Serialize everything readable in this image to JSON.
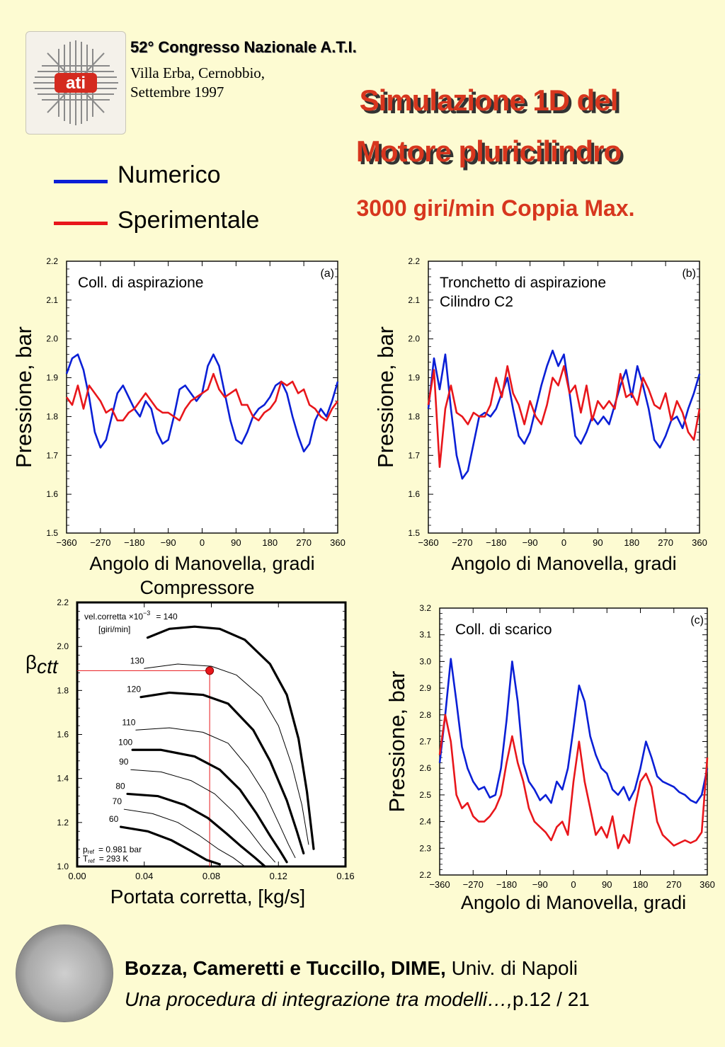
{
  "header": {
    "congress": "52° Congresso Nazionale A.T.I.",
    "venue_line1": "Villa Erba, Cernobbio,",
    "venue_line2": "Settembre 1997",
    "logo_text": "ati"
  },
  "title": {
    "line1": "Simulazione 1D del",
    "line2": "Motore pluricilindro",
    "subtitle": "3000 giri/min Coppia Max."
  },
  "legend": [
    {
      "label": "Numerico",
      "color": "#0a1fd6"
    },
    {
      "label": "Sperimentale",
      "color": "#e8161b"
    }
  ],
  "footer": {
    "authors_bold": "Bozza, Cameretti e Tuccillo, DIME,",
    "affiliation": " Univ. di Napoli",
    "paper_italic": "Una procedura di integrazione tra modelli…,",
    "page": "p.12 / 21"
  },
  "chart_data": [
    {
      "id": "a",
      "type": "line",
      "tag": "(a)",
      "annotation": "Coll. di aspirazione",
      "xlabel": "Angolo di Manovella, gradi",
      "ylabel": "Pressione, bar",
      "xlim": [
        -360,
        360
      ],
      "ylim": [
        1.5,
        2.2
      ],
      "xticks": [
        -360,
        -270,
        -180,
        -90,
        0,
        90,
        180,
        270,
        360
      ],
      "xtick_labels": [
        "−360",
        "−270",
        "−180",
        "−90",
        "0",
        "90",
        "180",
        "270",
        "360"
      ],
      "yticks": [
        1.5,
        1.6,
        1.7,
        1.8,
        1.9,
        2.0,
        2.1,
        2.2
      ],
      "ytick_labels": [
        "1.5",
        "1.6",
        "1.7",
        "1.8",
        "1.9",
        "2.0",
        "2.1",
        "2.2"
      ],
      "series": [
        {
          "name": "Numerico",
          "color": "#0a1fd6",
          "x": [
            -360,
            -345,
            -330,
            -315,
            -300,
            -285,
            -270,
            -255,
            -240,
            -225,
            -210,
            -195,
            -180,
            -165,
            -150,
            -135,
            -120,
            -105,
            -90,
            -75,
            -60,
            -45,
            -30,
            -15,
            0,
            15,
            30,
            45,
            60,
            75,
            90,
            105,
            120,
            135,
            150,
            165,
            180,
            195,
            210,
            225,
            240,
            255,
            270,
            285,
            300,
            315,
            330,
            345,
            360
          ],
          "y": [
            1.91,
            1.95,
            1.96,
            1.92,
            1.85,
            1.76,
            1.72,
            1.74,
            1.8,
            1.86,
            1.88,
            1.85,
            1.82,
            1.8,
            1.84,
            1.82,
            1.76,
            1.73,
            1.74,
            1.8,
            1.87,
            1.88,
            1.86,
            1.84,
            1.86,
            1.93,
            1.96,
            1.93,
            1.86,
            1.79,
            1.74,
            1.73,
            1.76,
            1.8,
            1.82,
            1.83,
            1.85,
            1.88,
            1.89,
            1.86,
            1.8,
            1.75,
            1.71,
            1.73,
            1.79,
            1.82,
            1.8,
            1.84,
            1.89
          ]
        },
        {
          "name": "Sperimentale",
          "color": "#e8161b",
          "x": [
            -360,
            -345,
            -330,
            -315,
            -300,
            -285,
            -270,
            -255,
            -240,
            -225,
            -210,
            -195,
            -180,
            -165,
            -150,
            -135,
            -120,
            -105,
            -90,
            -75,
            -60,
            -45,
            -30,
            -15,
            0,
            15,
            30,
            45,
            60,
            75,
            90,
            105,
            120,
            135,
            150,
            165,
            180,
            195,
            210,
            225,
            240,
            255,
            270,
            285,
            300,
            315,
            330,
            345,
            360
          ],
          "y": [
            1.85,
            1.83,
            1.88,
            1.82,
            1.88,
            1.86,
            1.84,
            1.81,
            1.82,
            1.79,
            1.79,
            1.81,
            1.82,
            1.84,
            1.86,
            1.84,
            1.82,
            1.81,
            1.81,
            1.8,
            1.79,
            1.82,
            1.84,
            1.85,
            1.86,
            1.87,
            1.91,
            1.87,
            1.85,
            1.86,
            1.87,
            1.83,
            1.83,
            1.8,
            1.79,
            1.81,
            1.82,
            1.84,
            1.89,
            1.88,
            1.89,
            1.86,
            1.87,
            1.83,
            1.82,
            1.8,
            1.79,
            1.82,
            1.84
          ]
        }
      ]
    },
    {
      "id": "b",
      "type": "line",
      "tag": "(b)",
      "annotation_line1": "Tronchetto di aspirazione",
      "annotation_line2": "Cilindro C2",
      "xlabel": "Angolo di Manovella, gradi",
      "ylabel": "Pressione, bar",
      "xlim": [
        -360,
        360
      ],
      "ylim": [
        1.5,
        2.2
      ],
      "xticks": [
        -360,
        -270,
        -180,
        -90,
        0,
        90,
        180,
        270,
        360
      ],
      "xtick_labels": [
        "−360",
        "−270",
        "−180",
        "−90",
        "0",
        "90",
        "180",
        "270",
        "360"
      ],
      "yticks": [
        1.5,
        1.6,
        1.7,
        1.8,
        1.9,
        2.0,
        2.1,
        2.2
      ],
      "ytick_labels": [
        "1.5",
        "1.6",
        "1.7",
        "1.8",
        "1.9",
        "2.0",
        "2.1",
        "2.2"
      ],
      "series": [
        {
          "name": "Numerico",
          "color": "#0a1fd6",
          "x": [
            -360,
            -345,
            -330,
            -315,
            -300,
            -285,
            -270,
            -255,
            -240,
            -225,
            -210,
            -195,
            -180,
            -165,
            -150,
            -135,
            -120,
            -105,
            -90,
            -75,
            -60,
            -45,
            -30,
            -15,
            0,
            15,
            30,
            45,
            60,
            75,
            90,
            105,
            120,
            135,
            150,
            165,
            180,
            195,
            210,
            225,
            240,
            255,
            270,
            285,
            300,
            315,
            330,
            345,
            360
          ],
          "y": [
            1.82,
            1.95,
            1.87,
            1.96,
            1.82,
            1.7,
            1.64,
            1.66,
            1.73,
            1.8,
            1.81,
            1.8,
            1.82,
            1.86,
            1.9,
            1.82,
            1.75,
            1.73,
            1.76,
            1.82,
            1.88,
            1.93,
            1.97,
            1.93,
            1.96,
            1.86,
            1.75,
            1.73,
            1.76,
            1.8,
            1.78,
            1.8,
            1.78,
            1.83,
            1.88,
            1.92,
            1.85,
            1.93,
            1.88,
            1.82,
            1.74,
            1.72,
            1.75,
            1.79,
            1.8,
            1.77,
            1.82,
            1.86,
            1.91
          ]
        },
        {
          "name": "Sperimentale",
          "color": "#e8161b",
          "x": [
            -360,
            -345,
            -330,
            -315,
            -300,
            -285,
            -270,
            -255,
            -240,
            -225,
            -210,
            -195,
            -180,
            -165,
            -150,
            -135,
            -120,
            -105,
            -90,
            -75,
            -60,
            -45,
            -30,
            -15,
            0,
            15,
            30,
            45,
            60,
            75,
            90,
            105,
            120,
            135,
            150,
            165,
            180,
            195,
            210,
            225,
            240,
            255,
            270,
            285,
            300,
            315,
            330,
            345,
            360
          ],
          "y": [
            1.83,
            1.92,
            1.67,
            1.82,
            1.88,
            1.81,
            1.8,
            1.78,
            1.81,
            1.8,
            1.8,
            1.83,
            1.9,
            1.85,
            1.93,
            1.86,
            1.83,
            1.78,
            1.84,
            1.8,
            1.78,
            1.83,
            1.9,
            1.88,
            1.93,
            1.86,
            1.88,
            1.81,
            1.88,
            1.79,
            1.84,
            1.82,
            1.84,
            1.82,
            1.91,
            1.85,
            1.86,
            1.83,
            1.9,
            1.87,
            1.83,
            1.82,
            1.86,
            1.79,
            1.84,
            1.81,
            1.76,
            1.74,
            1.82
          ]
        }
      ]
    },
    {
      "id": "compressor",
      "type": "line",
      "title": "Compressore",
      "xlabel": "Portata corretta, [kg/s]",
      "ylabel": "βctt",
      "xlim": [
        0.0,
        0.16
      ],
      "ylim": [
        1.0,
        2.2
      ],
      "xticks": [
        0.0,
        0.04,
        0.08,
        0.12,
        0.16
      ],
      "xtick_labels": [
        "0.00",
        "0.04",
        "0.08",
        "0.12",
        "0.16"
      ],
      "yticks": [
        1.0,
        1.2,
        1.4,
        1.6,
        1.8,
        2.0,
        2.2
      ],
      "ytick_labels": [
        "1.0",
        "1.2",
        "1.4",
        "1.6",
        "1.8",
        "2.0",
        "2.2"
      ],
      "speed_label_prefix": "vel.corretta ×10",
      "speed_label_exp": "−3",
      "speed_label_first": "=  140",
      "speed_units": "[giri/min]",
      "pref_text": "p",
      "pref_sub": "ref",
      "pref_value": "=  0.981  bar",
      "tref_text": "T",
      "tref_sub": "ref",
      "tref_value": "=  293  K",
      "operating_point": {
        "x": 0.079,
        "y": 1.89
      },
      "series": [
        {
          "name": "140",
          "bold": true,
          "x": [
            0.042,
            0.055,
            0.07,
            0.085,
            0.1,
            0.115,
            0.125,
            0.132,
            0.137,
            0.141
          ],
          "y": [
            2.04,
            2.08,
            2.09,
            2.08,
            2.03,
            1.92,
            1.78,
            1.58,
            1.34,
            1.08
          ]
        },
        {
          "name": "130",
          "bold": false,
          "x": [
            0.04,
            0.06,
            0.08,
            0.095,
            0.11,
            0.12,
            0.128,
            0.134,
            0.138
          ],
          "y": [
            1.9,
            1.92,
            1.91,
            1.87,
            1.77,
            1.64,
            1.46,
            1.28,
            1.1
          ]
        },
        {
          "name": "120",
          "bold": true,
          "x": [
            0.038,
            0.055,
            0.075,
            0.09,
            0.105,
            0.115,
            0.125,
            0.131,
            0.135
          ],
          "y": [
            1.77,
            1.79,
            1.78,
            1.74,
            1.62,
            1.48,
            1.3,
            1.16,
            1.06
          ]
        },
        {
          "name": "110",
          "bold": false,
          "x": [
            0.035,
            0.055,
            0.075,
            0.09,
            0.102,
            0.112,
            0.12,
            0.126,
            0.13
          ],
          "y": [
            1.62,
            1.63,
            1.61,
            1.56,
            1.45,
            1.33,
            1.2,
            1.1,
            1.04
          ]
        },
        {
          "name": "100",
          "bold": true,
          "x": [
            0.033,
            0.05,
            0.07,
            0.085,
            0.097,
            0.107,
            0.115,
            0.121,
            0.125
          ],
          "y": [
            1.53,
            1.53,
            1.5,
            1.44,
            1.35,
            1.24,
            1.14,
            1.07,
            1.02
          ]
        },
        {
          "name": "90",
          "bold": false,
          "x": [
            0.032,
            0.05,
            0.068,
            0.082,
            0.093,
            0.103,
            0.111,
            0.118
          ],
          "y": [
            1.44,
            1.43,
            1.39,
            1.33,
            1.25,
            1.16,
            1.08,
            1.02
          ]
        },
        {
          "name": "80",
          "bold": true,
          "x": [
            0.03,
            0.048,
            0.064,
            0.078,
            0.089,
            0.098,
            0.106,
            0.112
          ],
          "y": [
            1.33,
            1.32,
            1.28,
            1.22,
            1.15,
            1.09,
            1.04,
            1.0
          ]
        },
        {
          "name": "70",
          "bold": false,
          "x": [
            0.028,
            0.045,
            0.06,
            0.073,
            0.084,
            0.093,
            0.1
          ],
          "y": [
            1.26,
            1.24,
            1.2,
            1.14,
            1.08,
            1.04,
            1.0
          ]
        },
        {
          "name": "60",
          "bold": true,
          "x": [
            0.026,
            0.042,
            0.056,
            0.068,
            0.077,
            0.085
          ],
          "y": [
            1.18,
            1.16,
            1.12,
            1.07,
            1.03,
            1.01
          ]
        }
      ]
    },
    {
      "id": "c",
      "type": "line",
      "tag": "(c)",
      "annotation": "Coll. di scarico",
      "xlabel": "Angolo di Manovella, gradi",
      "ylabel": "Pressione, bar",
      "xlim": [
        -360,
        360
      ],
      "ylim": [
        2.2,
        3.2
      ],
      "xticks": [
        -360,
        -270,
        -180,
        -90,
        0,
        90,
        180,
        270,
        360
      ],
      "xtick_labels": [
        "−360",
        "−270",
        "−180",
        "−90",
        "0",
        "90",
        "180",
        "270",
        "360"
      ],
      "yticks": [
        2.2,
        2.3,
        2.4,
        2.5,
        2.6,
        2.7,
        2.8,
        2.9,
        3.0,
        3.1,
        3.2
      ],
      "ytick_labels": [
        "2.2",
        "2.3",
        "2.4",
        "2.5",
        "2.6",
        "2.7",
        "2.8",
        "2.9",
        "3.0",
        "3.1",
        "3.2"
      ],
      "series": [
        {
          "name": "Numerico",
          "color": "#0a1fd6",
          "x": [
            -360,
            -345,
            -330,
            -315,
            -300,
            -285,
            -270,
            -255,
            -240,
            -225,
            -210,
            -195,
            -180,
            -165,
            -150,
            -135,
            -120,
            -105,
            -90,
            -75,
            -60,
            -45,
            -30,
            -15,
            0,
            15,
            30,
            45,
            60,
            75,
            90,
            105,
            120,
            135,
            150,
            165,
            180,
            195,
            210,
            225,
            240,
            255,
            270,
            285,
            300,
            315,
            330,
            345,
            360
          ],
          "y": [
            2.62,
            2.8,
            3.01,
            2.85,
            2.68,
            2.6,
            2.55,
            2.52,
            2.53,
            2.49,
            2.5,
            2.6,
            2.78,
            3.0,
            2.85,
            2.62,
            2.55,
            2.52,
            2.48,
            2.5,
            2.47,
            2.55,
            2.52,
            2.6,
            2.75,
            2.91,
            2.85,
            2.72,
            2.65,
            2.6,
            2.58,
            2.52,
            2.5,
            2.53,
            2.48,
            2.52,
            2.6,
            2.7,
            2.64,
            2.57,
            2.55,
            2.54,
            2.53,
            2.51,
            2.5,
            2.48,
            2.47,
            2.5,
            2.6
          ]
        },
        {
          "name": "Sperimentale",
          "color": "#e8161b",
          "x": [
            -360,
            -345,
            -330,
            -315,
            -300,
            -285,
            -270,
            -255,
            -240,
            -225,
            -210,
            -195,
            -180,
            -165,
            -150,
            -135,
            -120,
            -105,
            -90,
            -75,
            -60,
            -45,
            -30,
            -15,
            0,
            15,
            30,
            45,
            60,
            75,
            90,
            105,
            120,
            135,
            150,
            165,
            180,
            195,
            210,
            225,
            240,
            255,
            270,
            285,
            300,
            315,
            330,
            345,
            360
          ],
          "y": [
            2.65,
            2.8,
            2.7,
            2.5,
            2.45,
            2.47,
            2.42,
            2.4,
            2.4,
            2.42,
            2.45,
            2.5,
            2.62,
            2.72,
            2.62,
            2.55,
            2.45,
            2.4,
            2.38,
            2.36,
            2.33,
            2.38,
            2.4,
            2.35,
            2.55,
            2.7,
            2.55,
            2.45,
            2.35,
            2.38,
            2.34,
            2.42,
            2.3,
            2.35,
            2.32,
            2.45,
            2.55,
            2.58,
            2.53,
            2.4,
            2.35,
            2.33,
            2.31,
            2.32,
            2.33,
            2.32,
            2.33,
            2.36,
            2.64
          ]
        }
      ]
    }
  ]
}
